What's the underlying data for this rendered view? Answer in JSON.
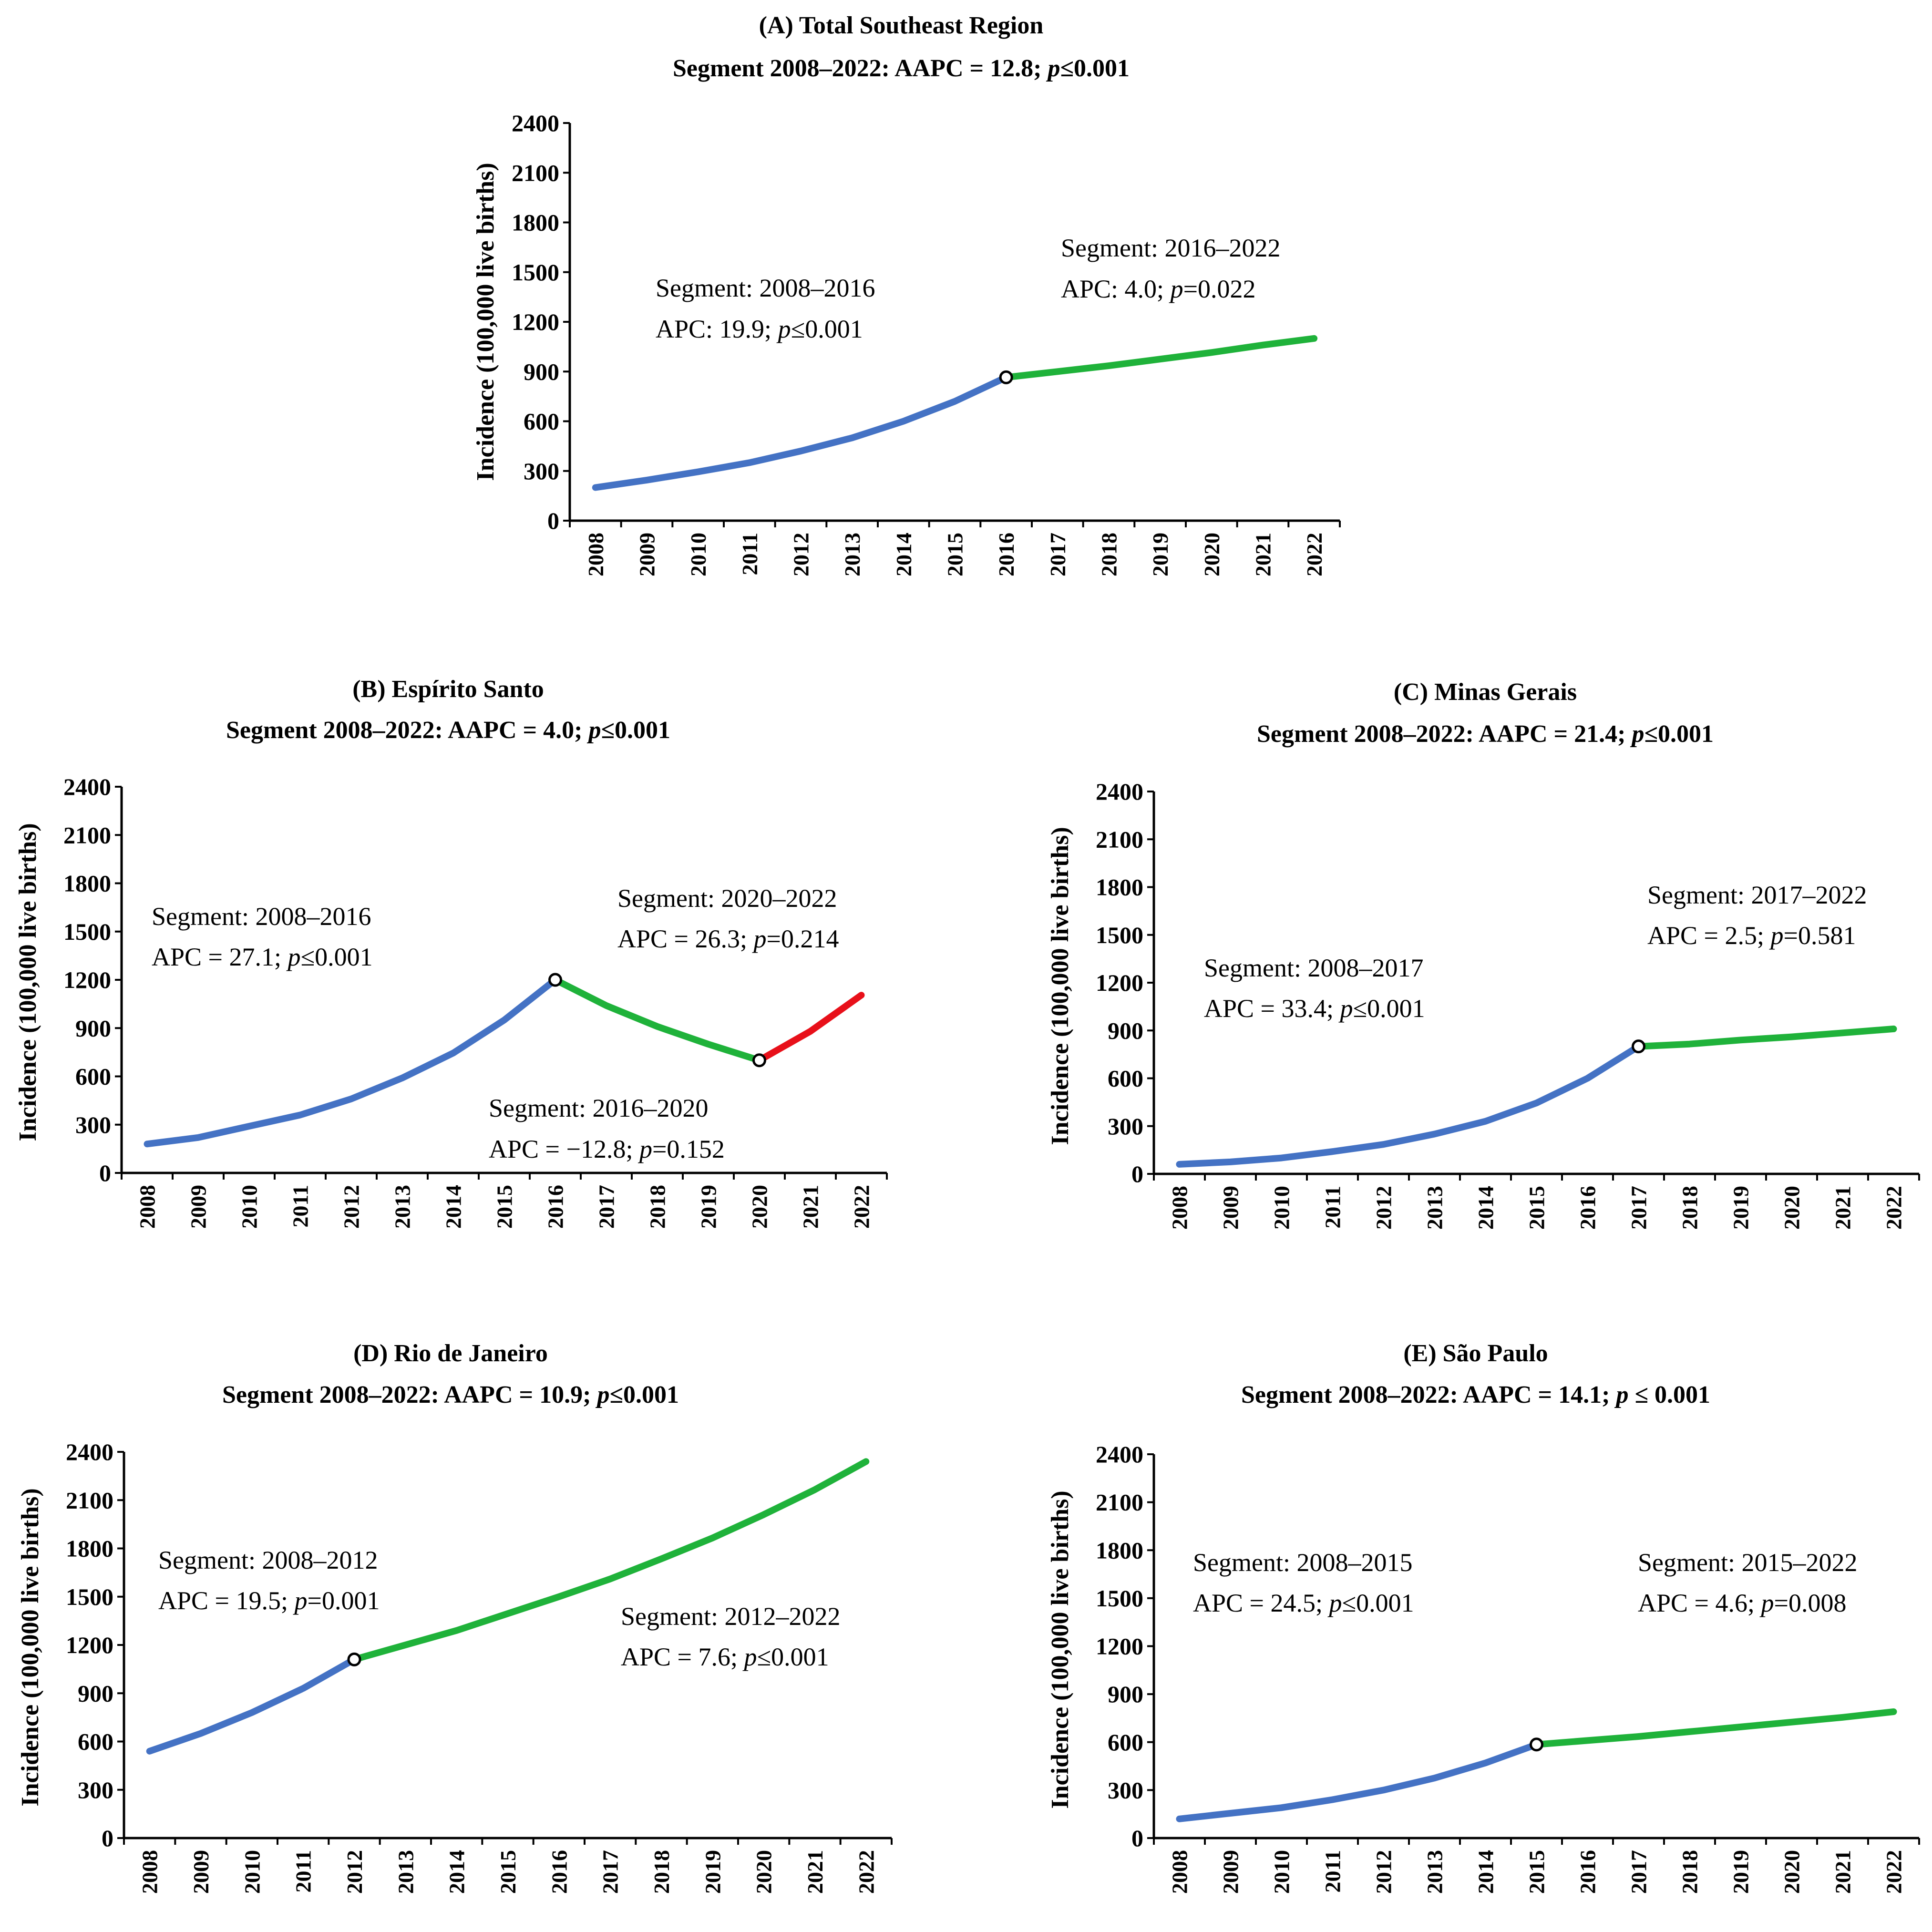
{
  "colors": {
    "blue": "#4472C4",
    "green": "#1FB23A",
    "red": "#E8101A"
  },
  "chart_data": [
    {
      "type": "line",
      "title": "(A) Total Southeast Region",
      "subtitle": {
        "pre": "Segment 2008–2022: AAPC = 12.8; ",
        "p": "p",
        "post": "≤0.001"
      },
      "ylabel": "Incidence (100,000 live births)",
      "ylim": [
        0,
        2400
      ],
      "yticks": [
        "0",
        "300",
        "600",
        "900",
        "1200",
        "1500",
        "1800",
        "2100",
        "2400"
      ],
      "x": [
        "2008",
        "2009",
        "2010",
        "2011",
        "2012",
        "2013",
        "2014",
        "2015",
        "2016",
        "2017",
        "2018",
        "2019",
        "2020",
        "2021",
        "2022"
      ],
      "values": [
        200,
        245,
        295,
        350,
        420,
        500,
        600,
        720,
        865,
        900,
        935,
        975,
        1015,
        1060,
        1100
      ],
      "segments": [
        {
          "from": 0,
          "to": 8,
          "color": "blue"
        },
        {
          "from": 8,
          "to": 14,
          "color": "green"
        }
      ],
      "joinpoints": [
        8
      ],
      "annotations": [
        {
          "line1": "Segment: 2008–2016",
          "line2": {
            "pre": "APC: 19.9; ",
            "p": "p",
            "post": "≤0.001"
          }
        },
        {
          "line1": "Segment: 2016–2022",
          "line2": {
            "pre": "APC: 4.0; ",
            "p": "p",
            "post": "=0.022"
          }
        }
      ]
    },
    {
      "type": "line",
      "title": "(B) Espírito Santo",
      "subtitle": {
        "pre": "Segment 2008–2022: AAPC = 4.0; ",
        "p": "p",
        "post": "≤0.001"
      },
      "ylabel": "Incidence (100,000 live births)",
      "ylim": [
        0,
        2400
      ],
      "yticks": [
        "0",
        "300",
        "600",
        "900",
        "1200",
        "1500",
        "1800",
        "2100",
        "2400"
      ],
      "x": [
        "2008",
        "2009",
        "2010",
        "2011",
        "2012",
        "2013",
        "2014",
        "2015",
        "2016",
        "2017",
        "2018",
        "2019",
        "2020",
        "2021",
        "2022"
      ],
      "values": [
        180,
        220,
        290,
        360,
        460,
        590,
        745,
        950,
        1200,
        1040,
        910,
        800,
        700,
        880,
        1105
      ],
      "segments": [
        {
          "from": 0,
          "to": 8,
          "color": "blue"
        },
        {
          "from": 8,
          "to": 12,
          "color": "green"
        },
        {
          "from": 12,
          "to": 14,
          "color": "red"
        }
      ],
      "joinpoints": [
        8,
        12
      ],
      "annotations": [
        {
          "line1": "Segment: 2008–2016",
          "line2": {
            "pre": "APC = 27.1; ",
            "p": "p",
            "post": "≤0.001"
          }
        },
        {
          "line1": "Segment: 2020–2022",
          "line2": {
            "pre": "APC = 26.3; ",
            "p": "p",
            "post": "=0.214"
          }
        },
        {
          "line1": "Segment: 2016–2020",
          "line2": {
            "pre": "APC = −12.8; ",
            "p": "p",
            "post": "=0.152"
          }
        }
      ]
    },
    {
      "type": "line",
      "title": "(C) Minas Gerais",
      "subtitle": {
        "pre": "Segment 2008–2022: AAPC = 21.4; ",
        "p": "p",
        "post": "≤0.001"
      },
      "ylabel": "Incidence (100,000 live births)",
      "ylim": [
        0,
        2400
      ],
      "yticks": [
        "0",
        "300",
        "600",
        "900",
        "1200",
        "1500",
        "1800",
        "2100",
        "2400"
      ],
      "x": [
        "2008",
        "2009",
        "2010",
        "2011",
        "2012",
        "2013",
        "2014",
        "2015",
        "2016",
        "2017",
        "2018",
        "2019",
        "2020",
        "2021",
        "2022"
      ],
      "values": [
        60,
        75,
        100,
        140,
        185,
        250,
        330,
        445,
        600,
        800,
        815,
        840,
        860,
        885,
        910
      ],
      "segments": [
        {
          "from": 0,
          "to": 9,
          "color": "blue"
        },
        {
          "from": 9,
          "to": 14,
          "color": "green"
        }
      ],
      "joinpoints": [
        9
      ],
      "annotations": [
        {
          "line1": "Segment: 2008–2017",
          "line2": {
            "pre": "APC = 33.4; ",
            "p": "p",
            "post": "≤0.001"
          }
        },
        {
          "line1": "Segment: 2017–2022",
          "line2": {
            "pre": "APC = 2.5; ",
            "p": "p",
            "post": "=0.581"
          }
        }
      ]
    },
    {
      "type": "line",
      "title": "(D) Rio de Janeiro",
      "subtitle": {
        "pre": "Segment 2008–2022: AAPC = 10.9; ",
        "p": "p",
        "post": "≤0.001"
      },
      "ylabel": "Incidence (100,000 live births)",
      "ylim": [
        0,
        2400
      ],
      "yticks": [
        "0",
        "300",
        "600",
        "900",
        "1200",
        "1500",
        "1800",
        "2100",
        "2400"
      ],
      "x": [
        "2008",
        "2009",
        "2010",
        "2011",
        "2012",
        "2013",
        "2014",
        "2015",
        "2016",
        "2017",
        "2018",
        "2019",
        "2020",
        "2021",
        "2022"
      ],
      "values": [
        540,
        650,
        780,
        930,
        1110,
        1200,
        1290,
        1395,
        1500,
        1610,
        1735,
        1865,
        2010,
        2165,
        2340
      ],
      "segments": [
        {
          "from": 0,
          "to": 4,
          "color": "blue"
        },
        {
          "from": 4,
          "to": 14,
          "color": "green"
        }
      ],
      "joinpoints": [
        4
      ],
      "annotations": [
        {
          "line1": "Segment: 2008–2012",
          "line2": {
            "pre": "APC = 19.5; ",
            "p": "p",
            "post": "=0.001"
          }
        },
        {
          "line1": "Segment: 2012–2022",
          "line2": {
            "pre": "APC = 7.6; ",
            "p": "p",
            "post": "≤0.001"
          }
        }
      ]
    },
    {
      "type": "line",
      "title": "(E) São Paulo",
      "subtitle": {
        "pre": "Segment 2008–2022: AAPC = 14.1; ",
        "p": "p",
        "post": " ≤ 0.001"
      },
      "ylabel": "Incidence (100,000 live births)",
      "ylim": [
        0,
        2400
      ],
      "yticks": [
        "0",
        "300",
        "600",
        "900",
        "1200",
        "1500",
        "1800",
        "2100",
        "2400"
      ],
      "x": [
        "2008",
        "2009",
        "2010",
        "2011",
        "2012",
        "2013",
        "2014",
        "2015",
        "2016",
        "2017",
        "2018",
        "2019",
        "2020",
        "2021",
        "2022"
      ],
      "values": [
        120,
        155,
        190,
        240,
        300,
        375,
        470,
        585,
        610,
        635,
        665,
        695,
        725,
        755,
        790
      ],
      "segments": [
        {
          "from": 0,
          "to": 7,
          "color": "blue"
        },
        {
          "from": 7,
          "to": 14,
          "color": "green"
        }
      ],
      "joinpoints": [
        7
      ],
      "annotations": [
        {
          "line1": "Segment: 2008–2015",
          "line2": {
            "pre": "APC = 24.5; ",
            "p": "p",
            "post": "≤0.001"
          }
        },
        {
          "line1": "Segment: 2015–2022",
          "line2": {
            "pre": "APC = 4.6; ",
            "p": "p",
            "post": "=0.008"
          }
        }
      ]
    }
  ]
}
